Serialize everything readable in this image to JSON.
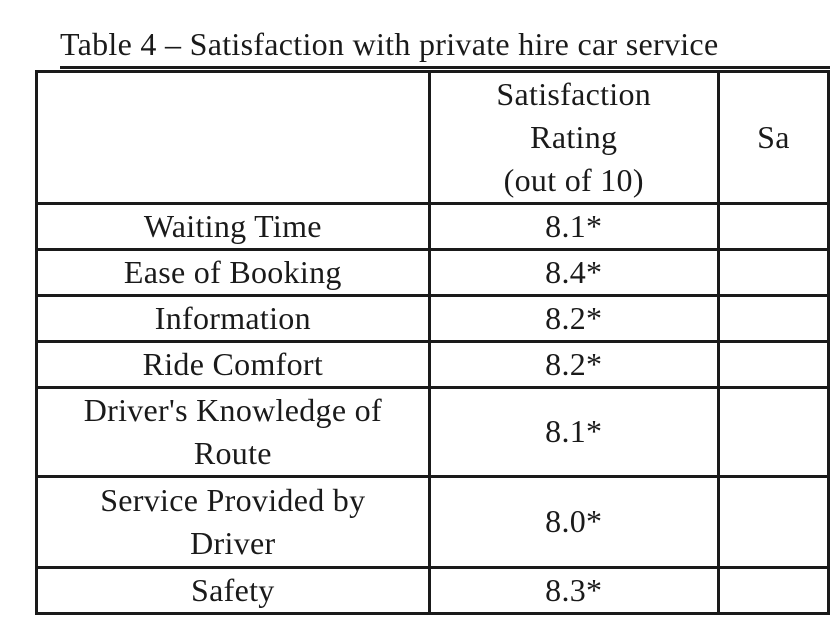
{
  "title": "Table 4 – Satisfaction with private hire car service",
  "table": {
    "header": {
      "col1": "",
      "col2_lines": [
        "Satisfaction",
        "Rating",
        "(out of 10)"
      ],
      "col3_visible_fragment": "Sa"
    },
    "rows": [
      {
        "label_lines": [
          "Waiting Time"
        ],
        "rating": "8.1*"
      },
      {
        "label_lines": [
          "Ease of Booking"
        ],
        "rating": "8.4*"
      },
      {
        "label_lines": [
          "Information"
        ],
        "rating": "8.2*"
      },
      {
        "label_lines": [
          "Ride Comfort"
        ],
        "rating": "8.2*"
      },
      {
        "label_lines": [
          "Driver's Knowledge of",
          "Route"
        ],
        "rating": "8.1*"
      },
      {
        "label_lines": [
          "Service Provided by",
          "Driver"
        ],
        "rating": "8.0*"
      },
      {
        "label_lines": [
          "Safety"
        ],
        "rating": "8.3*"
      }
    ]
  },
  "colors": {
    "text": "#1a1a1a",
    "border": "#1a1a1a",
    "background": "#ffffff"
  }
}
